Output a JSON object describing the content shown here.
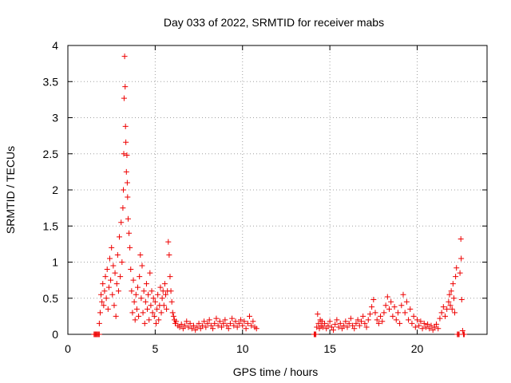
{
  "chart_data": {
    "type": "scatter",
    "title": "Day 033 of 2022, SRMTID for receiver mabs",
    "xlabel": "GPS time / hours",
    "ylabel": "SRMTID / TECUs",
    "xlim": [
      0,
      24
    ],
    "ylim": [
      0,
      4
    ],
    "xticks": [
      "0",
      "5",
      "10",
      "15",
      "20"
    ],
    "yticks": [
      "0",
      "0.5",
      "1",
      "1.5",
      "2",
      "2.5",
      "3",
      "3.5",
      "4"
    ],
    "grid": true,
    "marker": "+",
    "color": "#ee0000",
    "series": [
      {
        "values": [
          [
            1.5,
            0.0
          ],
          [
            1.55,
            0.0
          ],
          [
            1.6,
            0.0
          ],
          [
            1.65,
            0.0
          ],
          [
            1.7,
            0.0
          ],
          [
            1.75,
            0.0
          ],
          [
            1.8,
            0.0
          ],
          [
            1.8,
            0.15
          ],
          [
            1.85,
            0.3
          ],
          [
            1.9,
            0.55
          ],
          [
            1.95,
            0.45
          ],
          [
            2.0,
            0.7
          ],
          [
            2.05,
            0.4
          ],
          [
            2.1,
            0.6
          ],
          [
            2.15,
            0.8
          ],
          [
            2.2,
            0.5
          ],
          [
            2.25,
            0.9
          ],
          [
            2.3,
            0.35
          ],
          [
            2.35,
            0.65
          ],
          [
            2.4,
            1.05
          ],
          [
            2.45,
            0.75
          ],
          [
            2.5,
            1.2
          ],
          [
            2.55,
            0.55
          ],
          [
            2.6,
            0.95
          ],
          [
            2.65,
            0.4
          ],
          [
            2.7,
            0.85
          ],
          [
            2.75,
            0.25
          ],
          [
            2.8,
            0.7
          ],
          [
            2.85,
            1.1
          ],
          [
            2.9,
            0.6
          ],
          [
            2.95,
            1.35
          ],
          [
            3.0,
            0.8
          ],
          [
            3.05,
            1.55
          ],
          [
            3.1,
            1.0
          ],
          [
            3.15,
            1.75
          ],
          [
            3.18,
            2.0
          ],
          [
            3.2,
            2.5
          ],
          [
            3.22,
            3.27
          ],
          [
            3.25,
            3.85
          ],
          [
            3.28,
            3.43
          ],
          [
            3.3,
            2.88
          ],
          [
            3.32,
            2.66
          ],
          [
            3.35,
            2.25
          ],
          [
            3.38,
            2.48
          ],
          [
            3.4,
            2.1
          ],
          [
            3.42,
            1.9
          ],
          [
            3.45,
            1.6
          ],
          [
            3.5,
            1.4
          ],
          [
            3.55,
            1.2
          ],
          [
            3.6,
            0.9
          ],
          [
            3.65,
            0.6
          ],
          [
            3.7,
            0.3
          ],
          [
            3.75,
            0.75
          ],
          [
            3.8,
            0.45
          ],
          [
            3.85,
            0.2
          ],
          [
            3.9,
            0.55
          ],
          [
            3.95,
            0.35
          ],
          [
            4.0,
            0.65
          ],
          [
            4.05,
            0.25
          ],
          [
            4.1,
            0.8
          ],
          [
            4.15,
            1.1
          ],
          [
            4.2,
            0.5
          ],
          [
            4.25,
            0.95
          ],
          [
            4.3,
            0.3
          ],
          [
            4.35,
            0.6
          ],
          [
            4.4,
            0.15
          ],
          [
            4.45,
            0.45
          ],
          [
            4.5,
            0.7
          ],
          [
            4.55,
            0.35
          ],
          [
            4.6,
            0.55
          ],
          [
            4.65,
            0.2
          ],
          [
            4.7,
            0.85
          ],
          [
            4.75,
            0.4
          ],
          [
            4.8,
            0.6
          ],
          [
            4.85,
            0.3
          ],
          [
            4.9,
            0.5
          ],
          [
            4.95,
            0.25
          ],
          [
            5.0,
            0.45
          ],
          [
            5.05,
            0.15
          ],
          [
            5.1,
            0.35
          ],
          [
            5.15,
            0.55
          ],
          [
            5.2,
            0.2
          ],
          [
            5.25,
            0.4
          ],
          [
            5.3,
            0.65
          ],
          [
            5.35,
            0.3
          ],
          [
            5.4,
            0.5
          ],
          [
            5.45,
            0.6
          ],
          [
            5.5,
            0.4
          ],
          [
            5.55,
            0.7
          ],
          [
            5.6,
            0.55
          ],
          [
            5.65,
            0.35
          ],
          [
            5.7,
            0.6
          ],
          [
            5.75,
            1.28
          ],
          [
            5.8,
            1.1
          ],
          [
            5.85,
            0.8
          ],
          [
            5.9,
            0.6
          ],
          [
            5.95,
            0.45
          ],
          [
            6.0,
            0.3
          ],
          [
            6.05,
            0.25
          ],
          [
            6.1,
            0.2
          ],
          [
            6.15,
            0.15
          ],
          [
            6.2,
            0.18
          ],
          [
            6.3,
            0.12
          ],
          [
            6.4,
            0.1
          ],
          [
            6.5,
            0.14
          ],
          [
            6.6,
            0.08
          ],
          [
            6.7,
            0.12
          ],
          [
            6.8,
            0.18
          ],
          [
            6.9,
            0.1
          ],
          [
            7.0,
            0.15
          ],
          [
            7.1,
            0.08
          ],
          [
            7.2,
            0.12
          ],
          [
            7.3,
            0.06
          ],
          [
            7.4,
            0.1
          ],
          [
            7.5,
            0.15
          ],
          [
            7.6,
            0.08
          ],
          [
            7.7,
            0.12
          ],
          [
            7.8,
            0.18
          ],
          [
            7.9,
            0.1
          ],
          [
            8.0,
            0.15
          ],
          [
            8.1,
            0.2
          ],
          [
            8.2,
            0.12
          ],
          [
            8.3,
            0.08
          ],
          [
            8.4,
            0.15
          ],
          [
            8.5,
            0.22
          ],
          [
            8.6,
            0.12
          ],
          [
            8.7,
            0.18
          ],
          [
            8.8,
            0.1
          ],
          [
            8.9,
            0.15
          ],
          [
            9.0,
            0.2
          ],
          [
            9.1,
            0.12
          ],
          [
            9.2,
            0.08
          ],
          [
            9.3,
            0.15
          ],
          [
            9.4,
            0.22
          ],
          [
            9.5,
            0.12
          ],
          [
            9.6,
            0.18
          ],
          [
            9.7,
            0.1
          ],
          [
            9.8,
            0.15
          ],
          [
            9.9,
            0.2
          ],
          [
            10.0,
            0.12
          ],
          [
            10.1,
            0.18
          ],
          [
            10.2,
            0.08
          ],
          [
            10.3,
            0.15
          ],
          [
            10.4,
            0.25
          ],
          [
            10.5,
            0.12
          ],
          [
            10.6,
            0.18
          ],
          [
            10.7,
            0.1
          ],
          [
            10.8,
            0.08
          ],
          [
            14.1,
            0.0
          ],
          [
            14.15,
            0.0
          ],
          [
            14.2,
            0.0
          ],
          [
            14.25,
            0.1
          ],
          [
            14.3,
            0.28
          ],
          [
            14.35,
            0.15
          ],
          [
            14.4,
            0.08
          ],
          [
            14.45,
            0.2
          ],
          [
            14.5,
            0.12
          ],
          [
            14.55,
            0.18
          ],
          [
            14.6,
            0.1
          ],
          [
            14.7,
            0.15
          ],
          [
            14.8,
            0.08
          ],
          [
            14.9,
            0.12
          ],
          [
            15.0,
            0.18
          ],
          [
            15.1,
            0.1
          ],
          [
            15.2,
            0.06
          ],
          [
            15.3,
            0.14
          ],
          [
            15.4,
            0.2
          ],
          [
            15.5,
            0.1
          ],
          [
            15.6,
            0.15
          ],
          [
            15.7,
            0.08
          ],
          [
            15.8,
            0.12
          ],
          [
            15.9,
            0.18
          ],
          [
            16.0,
            0.1
          ],
          [
            16.1,
            0.15
          ],
          [
            16.2,
            0.22
          ],
          [
            16.3,
            0.12
          ],
          [
            16.4,
            0.08
          ],
          [
            16.5,
            0.15
          ],
          [
            16.6,
            0.2
          ],
          [
            16.7,
            0.12
          ],
          [
            16.8,
            0.18
          ],
          [
            16.9,
            0.25
          ],
          [
            17.0,
            0.15
          ],
          [
            17.1,
            0.1
          ],
          [
            17.2,
            0.2
          ],
          [
            17.3,
            0.28
          ],
          [
            17.4,
            0.38
          ],
          [
            17.5,
            0.48
          ],
          [
            17.6,
            0.3
          ],
          [
            17.7,
            0.2
          ],
          [
            17.8,
            0.15
          ],
          [
            17.9,
            0.25
          ],
          [
            18.0,
            0.18
          ],
          [
            18.1,
            0.3
          ],
          [
            18.2,
            0.4
          ],
          [
            18.3,
            0.52
          ],
          [
            18.4,
            0.35
          ],
          [
            18.5,
            0.45
          ],
          [
            18.6,
            0.25
          ],
          [
            18.7,
            0.38
          ],
          [
            18.8,
            0.2
          ],
          [
            18.9,
            0.3
          ],
          [
            19.0,
            0.15
          ],
          [
            19.1,
            0.4
          ],
          [
            19.2,
            0.55
          ],
          [
            19.3,
            0.3
          ],
          [
            19.4,
            0.45
          ],
          [
            19.5,
            0.2
          ],
          [
            19.6,
            0.35
          ],
          [
            19.7,
            0.15
          ],
          [
            19.8,
            0.25
          ],
          [
            19.9,
            0.1
          ],
          [
            20.0,
            0.2
          ],
          [
            20.1,
            0.12
          ],
          [
            20.2,
            0.18
          ],
          [
            20.3,
            0.08
          ],
          [
            20.4,
            0.15
          ],
          [
            20.5,
            0.1
          ],
          [
            20.6,
            0.14
          ],
          [
            20.7,
            0.08
          ],
          [
            20.8,
            0.12
          ],
          [
            20.9,
            0.06
          ],
          [
            21.0,
            0.1
          ],
          [
            21.1,
            0.14
          ],
          [
            21.2,
            0.08
          ],
          [
            21.3,
            0.22
          ],
          [
            21.4,
            0.3
          ],
          [
            21.5,
            0.38
          ],
          [
            21.6,
            0.25
          ],
          [
            21.7,
            0.35
          ],
          [
            21.8,
            0.45
          ],
          [
            21.85,
            0.55
          ],
          [
            21.9,
            0.4
          ],
          [
            21.95,
            0.6
          ],
          [
            22.0,
            0.35
          ],
          [
            22.05,
            0.7
          ],
          [
            22.1,
            0.5
          ],
          [
            22.15,
            0.3
          ],
          [
            22.2,
            0.8
          ],
          [
            22.25,
            0.92
          ],
          [
            22.3,
            0.0
          ],
          [
            22.35,
            0.0
          ],
          [
            22.4,
            0.0
          ],
          [
            22.45,
            0.85
          ],
          [
            22.5,
            1.32
          ],
          [
            22.52,
            1.05
          ],
          [
            22.55,
            0.48
          ],
          [
            22.6,
            0.05
          ],
          [
            22.65,
            0.0
          ],
          [
            22.7,
            0.0
          ]
        ]
      }
    ]
  }
}
